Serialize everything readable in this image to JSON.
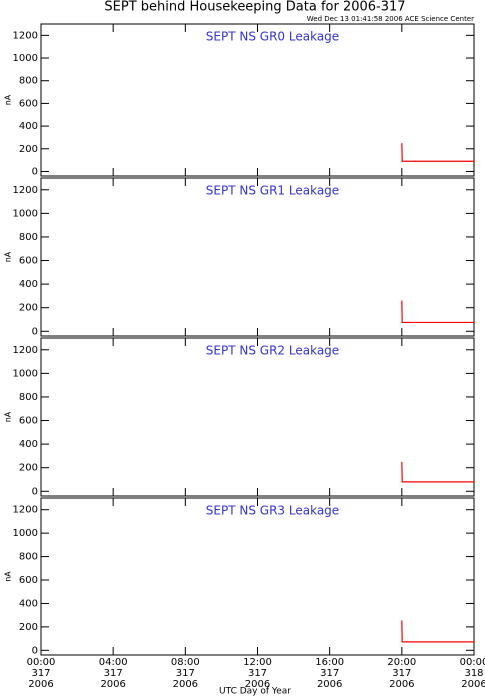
{
  "title": "SEPT behind Housekeeping Data for 2006-317",
  "subtitle": "Wed Dec 13 01:41:58 2006 ACE Science Center",
  "x_label": "UTC Day of Year",
  "chart_data": [
    {
      "type": "line",
      "title": "SEPT NS GR0 Leakage",
      "y_label": "nA",
      "xlim": [
        0,
        24
      ],
      "xticks": [
        0,
        4,
        8,
        12,
        16,
        20,
        24
      ],
      "ylim": [
        -40,
        1300
      ],
      "yticks": [
        0,
        200,
        400,
        600,
        800,
        1000,
        1200
      ],
      "series": [
        {
          "color": "#ff0000",
          "x": [
            20.0,
            20.02,
            24.0
          ],
          "values": [
            250,
            90,
            90
          ]
        }
      ]
    },
    {
      "type": "line",
      "title": "SEPT NS GR1 Leakage",
      "y_label": "nA",
      "xlim": [
        0,
        24
      ],
      "xticks": [
        0,
        4,
        8,
        12,
        16,
        20,
        24
      ],
      "ylim": [
        -40,
        1300
      ],
      "yticks": [
        0,
        200,
        400,
        600,
        800,
        1000,
        1200
      ],
      "series": [
        {
          "color": "#ff0000",
          "x": [
            20.0,
            20.02,
            24.0
          ],
          "values": [
            260,
            75,
            75
          ]
        }
      ]
    },
    {
      "type": "line",
      "title": "SEPT NS GR2 Leakage",
      "y_label": "nA",
      "xlim": [
        0,
        24
      ],
      "xticks": [
        0,
        4,
        8,
        12,
        16,
        20,
        24
      ],
      "ylim": [
        -40,
        1300
      ],
      "yticks": [
        0,
        200,
        400,
        600,
        800,
        1000,
        1200
      ],
      "series": [
        {
          "color": "#ff0000",
          "x": [
            20.0,
            20.02,
            24.0
          ],
          "values": [
            250,
            80,
            80
          ]
        }
      ]
    },
    {
      "type": "line",
      "title": "SEPT NS GR3 Leakage",
      "y_label": "nA",
      "xlim": [
        0,
        24
      ],
      "xticks": [
        {
          "value": 0,
          "label": [
            "00:00",
            "317",
            "2006"
          ]
        },
        {
          "value": 4,
          "label": [
            "04:00",
            "317",
            "2006"
          ]
        },
        {
          "value": 8,
          "label": [
            "08:00",
            "317",
            "2006"
          ]
        },
        {
          "value": 12,
          "label": [
            "12:00",
            "317",
            "2006"
          ]
        },
        {
          "value": 16,
          "label": [
            "16:00",
            "317",
            "2006"
          ]
        },
        {
          "value": 20,
          "label": [
            "20:00",
            "317",
            "2006"
          ]
        },
        {
          "value": 24,
          "label": [
            "00:00",
            "318",
            "2006"
          ]
        }
      ],
      "ylim": [
        -40,
        1300
      ],
      "yticks": [
        0,
        200,
        400,
        600,
        800,
        1000,
        1200
      ],
      "series": [
        {
          "color": "#ff0000",
          "x": [
            20.0,
            20.02,
            24.0
          ],
          "values": [
            255,
            72,
            72
          ]
        }
      ]
    }
  ]
}
